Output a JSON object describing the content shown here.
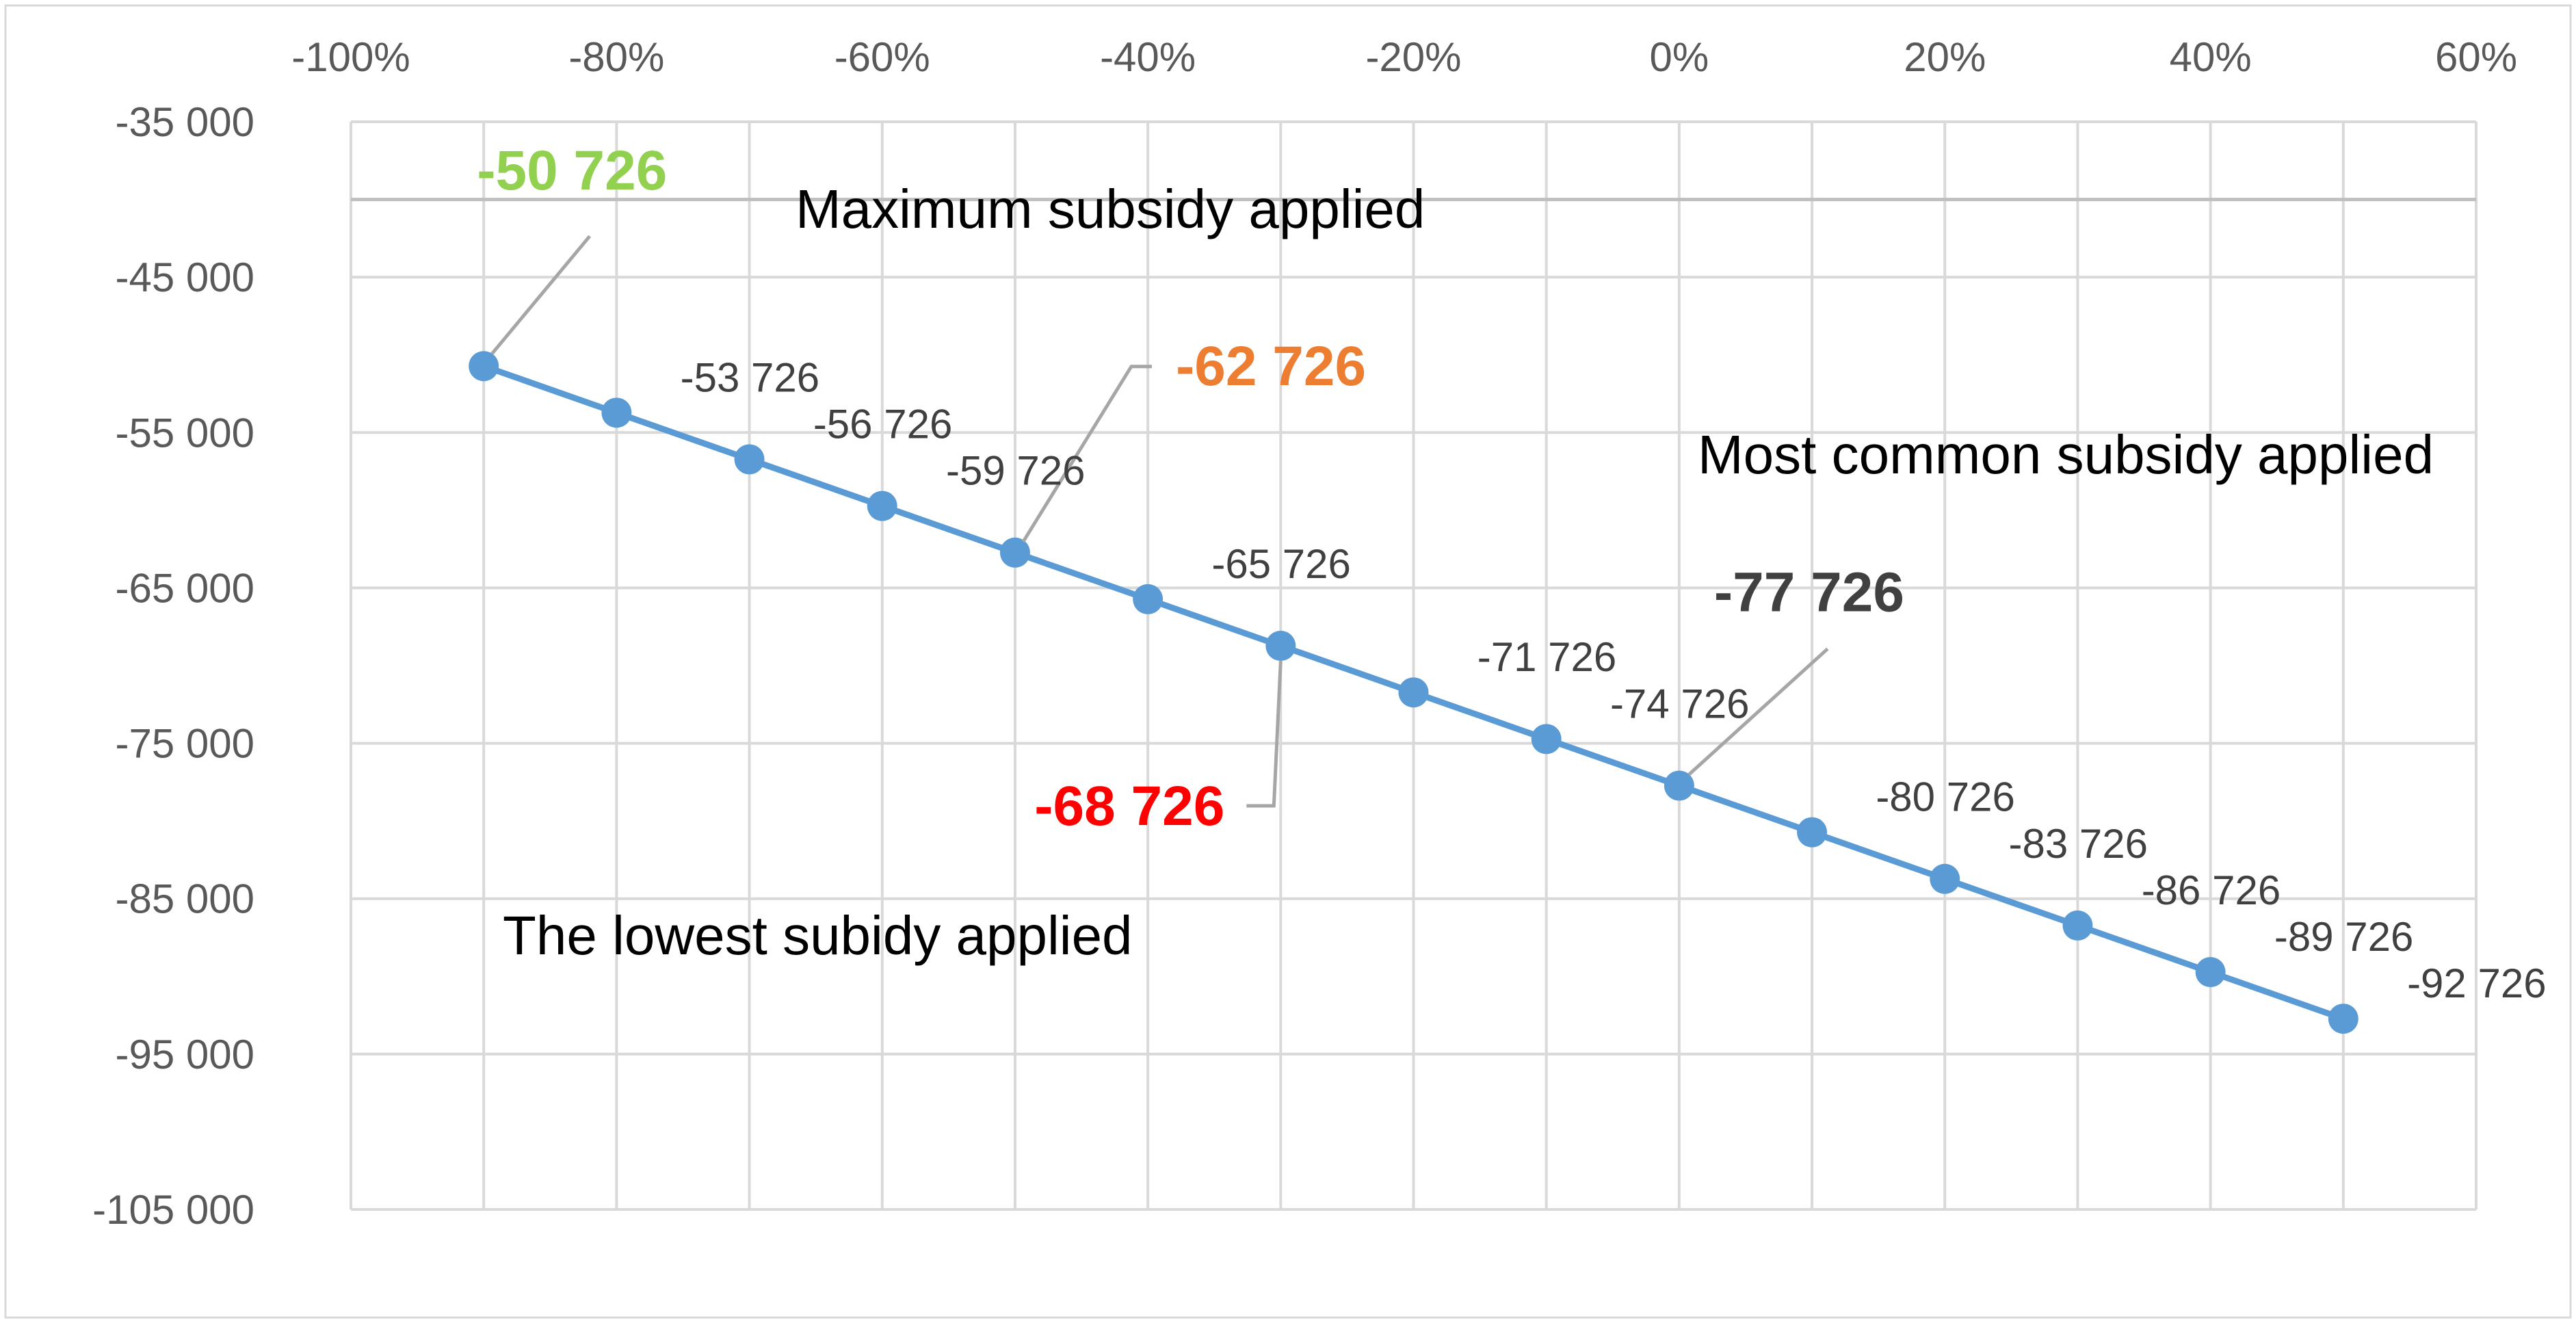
{
  "chart_data": {
    "type": "line",
    "title": "",
    "xlabel": "",
    "ylabel": "",
    "x": [
      -0.9,
      -0.8,
      -0.7,
      -0.6,
      -0.5,
      -0.4,
      -0.3,
      -0.2,
      -0.1,
      0.0,
      0.1,
      0.2,
      0.3,
      0.4,
      0.5
    ],
    "series": [
      {
        "values": [
          -50726,
          -53726,
          -56726,
          -59726,
          -62726,
          -65726,
          -68726,
          -71726,
          -74726,
          -77726,
          -80726,
          -83726,
          -86726,
          -89726,
          -92726
        ]
      }
    ],
    "data_labels": [
      "-50 726",
      "-53 726",
      "-56 726",
      "-59 726",
      "-62 726",
      "-65 726",
      "-68 726",
      "-71 726",
      "-74 726",
      "-77 726",
      "-80 726",
      "-83 726",
      "-86 726",
      "-89 726",
      "-92 726"
    ],
    "x_axis": {
      "position": "top",
      "min": -1.0,
      "max": 0.6,
      "ticks": [
        -1.0,
        -0.8,
        -0.6,
        -0.4,
        -0.2,
        0.0,
        0.2,
        0.4,
        0.6
      ],
      "tick_labels": [
        "-100%",
        "-80%",
        "-60%",
        "-40%",
        "-20%",
        "0%",
        "20%",
        "40%",
        "60%"
      ],
      "minor_gridlines": [
        -0.9,
        -0.7,
        -0.5,
        -0.3,
        -0.1,
        0.1,
        0.3,
        0.5
      ]
    },
    "y_axis": {
      "min": -105000,
      "max": -35000,
      "ticks": [
        -35000,
        -45000,
        -55000,
        -65000,
        -75000,
        -85000,
        -95000,
        -105000
      ],
      "tick_labels": [
        "-35 000",
        "-45 000",
        "-55 000",
        "-65 000",
        "-75 000",
        "-85 000",
        "-95 000",
        "-105 000"
      ],
      "x_axis_crosses_at": -40000
    },
    "grid": true,
    "legend": "none",
    "highlights": [
      {
        "index": 0,
        "label": "-50 726",
        "color": "#92D050"
      },
      {
        "index": 4,
        "label": "-62 726",
        "color": "#ED7D31"
      },
      {
        "index": 6,
        "label": "-68 726",
        "color": "#FF0000"
      },
      {
        "index": 9,
        "label": "-77 726",
        "color": "#404040"
      }
    ],
    "annotations": [
      "Maximum subsidy applied",
      "Most common subsidy applied",
      "The lowest subidy applied"
    ],
    "colors": {
      "series": "#5B9BD5",
      "grid": "#D9D9D9",
      "axis": "#BFBFBF",
      "border": "#D9D9D9",
      "leader": "#A6A6A6"
    }
  }
}
